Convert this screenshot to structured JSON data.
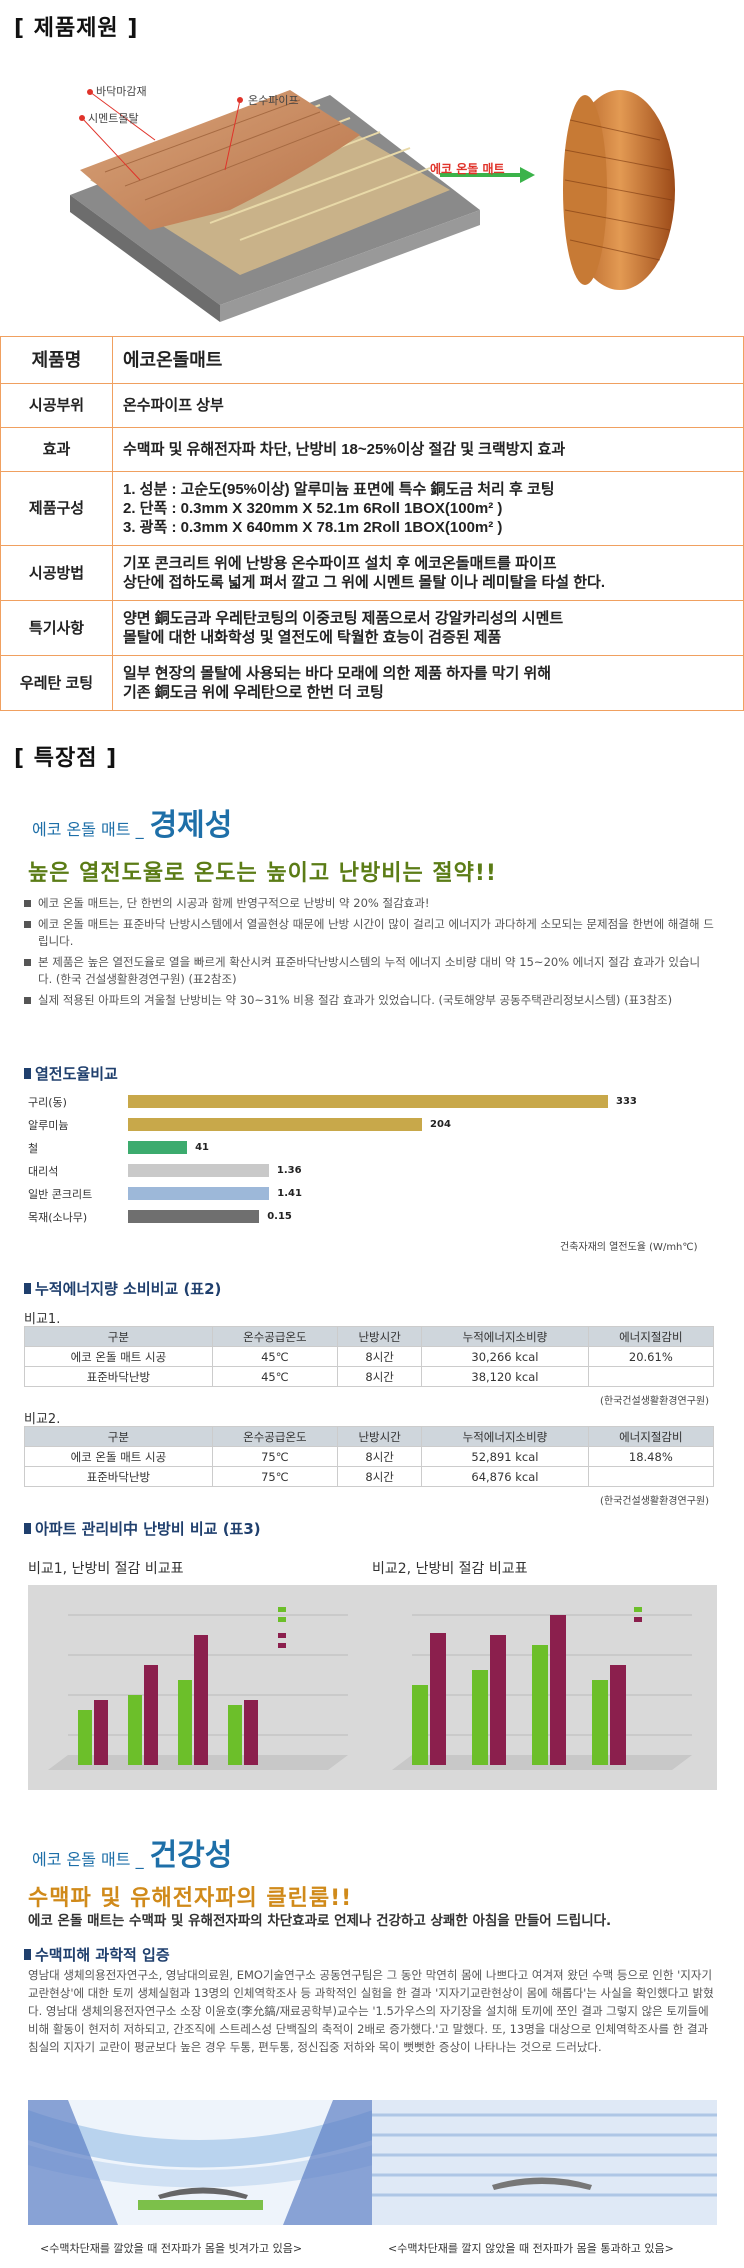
{
  "spec_section": {
    "title": "[ 제품제원 ]"
  },
  "hero_labels": {
    "floor": "바닥마감재",
    "mortar": "시멘트몰탈",
    "pipe": "온수파이프",
    "mat": "에코 온돌 매트"
  },
  "spec_table": [
    {
      "key": "제품명",
      "value": [
        "에코온돌매트"
      ]
    },
    {
      "key": "시공부위",
      "value": [
        "온수파이프 상부"
      ]
    },
    {
      "key": "효과",
      "value": [
        "수맥파 및 유해전자파 차단, 난방비 18~25%이상 절감 및 크랙방지 효과"
      ]
    },
    {
      "key": "제품구성",
      "value": [
        "1. 성분 : 고순도(95%이상) 알루미늄 표면에 특수 銅도금 처리 후 코팅",
        "2. 단폭 : 0.3mm X 320mm X 52.1m   6Roll 1BOX(100m² )",
        "3. 광폭 : 0.3mm X 640mm X 78.1m   2Roll 1BOX(100m² )"
      ]
    },
    {
      "key": "시공방법",
      "value": [
        "기포 콘크리트 위에 난방용 온수파이프 설치 후 에코온돌매트를 파이프",
        "상단에 접하도록 넓게 펴서 깔고 그 위에 시멘트 몰탈 이나 레미탈을 타설 한다."
      ]
    },
    {
      "key": "특기사항",
      "value": [
        "양면 銅도금과 우레탄코팅의 이중코팅 제품으로서 강알카리성의 시멘트",
        "몰탈에 대한 내화학성 및 열전도에 탁월한 효능이 검증된 제품"
      ]
    },
    {
      "key": "우레탄 코팅",
      "value": [
        "일부 현장의 몰탈에 사용되는 바다 모래에 의한 제품 하자를 막기 위해",
        "기존 銅도금 위에 우레탄으로 한번 더 코팅"
      ]
    }
  ],
  "features_section": {
    "title": "[ 특장점 ]"
  },
  "economy": {
    "brand": "에코 온돌 매트 _",
    "heading": "경제성",
    "slogan": "높은 열전도율로 온도는 높이고 난방비는 절약!!",
    "bullets": [
      "에코 온돌 매트는, 단 한번의 시공과 함께 반영구적으로 난방비 약 20% 절감효과!",
      "에코 온돌 매트는 표준바닥 난방시스템에서 열골현상 때문에 난방 시간이 많이 걸리고 에너지가 과다하게 소모되는 문제점을 한번에 해결해 드립니다.",
      "본 제품은 높은 열전도율로 열을 빠르게 확산시켜 표준바닥난방시스템의 누적 에너지 소비량 대비 약 15~20% 에너지 절감 효과가 있습니다. (한국 건설생활환경연구원) (표2참조)",
      "실제 적용된 아파트의 겨울철 난방비는 약 30~31% 비용 절감 효과가 있었습니다. (국토해양부 공동주택관리정보시스템) (표3참조)"
    ]
  },
  "conductivity": {
    "title": "열전도율비교",
    "unit_note": "건축자재의 열전도율 (W/mh℃)"
  },
  "chart_data": {
    "type": "bar",
    "categories": [
      "구리(동)",
      "알루미늄",
      "철",
      "대리석",
      "일반 콘크리트",
      "목재(소나무)"
    ],
    "values": [
      333,
      204,
      41,
      1.36,
      1.41,
      0.15
    ],
    "value_labels": [
      "333",
      "204",
      "41",
      "1.36",
      "1.41",
      "0.15"
    ],
    "colors": [
      "#c8a84a",
      "#c8a84a",
      "#3cab6e",
      "#c9c9c9",
      "#9db8d9",
      "#6f6f6f"
    ],
    "xlabel": "건축자재의 열전도율 (W/mh℃)"
  },
  "energy": {
    "title": "누적에너지량 소비비교 (표2)",
    "headers": [
      "구분",
      "온수공급온도",
      "난방시간",
      "누적에너지소비량",
      "에너지절감비"
    ],
    "tables": [
      {
        "label": "비교1.",
        "rows": [
          [
            "에코 온돌 매트 시공",
            "45℃",
            "8시간",
            "30,266 kcal",
            "20.61%"
          ],
          [
            "표준바닥난방",
            "45℃",
            "8시간",
            "38,120 kcal",
            ""
          ]
        ],
        "source": "(한국건설생활환경연구원)"
      },
      {
        "label": "비교2.",
        "rows": [
          [
            "에코 온돌 매트 시공",
            "75℃",
            "8시간",
            "52,891 kcal",
            "18.48%"
          ],
          [
            "표준바닥난방",
            "75℃",
            "8시간",
            "64,876 kcal",
            ""
          ]
        ],
        "source": "(한국건설생활환경연구원)"
      }
    ]
  },
  "apt": {
    "title": "아파트 관리비中 난방비 비교 (표3)",
    "chart1_title": "비교1, 난방비 절감 비교표",
    "chart2_title": "비교2, 난방비 절감 비교표"
  },
  "health": {
    "brand": "에코 온돌 매트 _",
    "heading": "건강성",
    "slogan": "수맥파 및 유해전자파의 클린룸!!",
    "lead": "에코 온돌 매트는 수맥파 및 유해전자파의 차단효과로 언제나 건강하고 상쾌한 아침을 만들어 드립니다.",
    "sub": "수맥피해 과학적 입증",
    "body": "영남대 생체의용전자연구소, 영남대의료원, EMO기술연구소 공동연구팀은 그 동안 막연히 몸에 나쁘다고 여겨져 왔던 수맥 등으로 인한 '지자기 교란현상'에 대한 토끼 생체실험과 13명의 인체역학조사 등 과학적인 실험을 한 결과 '지자기교란현상이 몸에 해롭다'는 사실을 확인했다고 밝혔다. 영남대 생체의용전자연구소 소장 이윤호(李允鎬/재료공학부)교수는 '1.5가우스의 자기장을 설치해 토끼에 쪼인 결과 그렇지 않은 토끼들에 비해 활동이 현저히 저하되고, 간조직에 스트레스성 단백질의 축적이 2배로 증가했다.'고 말했다. 또, 13명을 대상으로 인체역학조사를 한 결과 침실의 지자기 교란이 평균보다 높은 경우 두통, 편두통, 정신집중 저하와 목이 뻣뻣한 증상이 나타나는 것으로 드러났다.",
    "caption_left": "<수맥차단재를 깔았을 때 전자파가 몸을 빗겨가고 있음>",
    "caption_right": "<수맥차단재를 깔지 않았을 때 전자파가 몸을 통과하고 있음>"
  }
}
